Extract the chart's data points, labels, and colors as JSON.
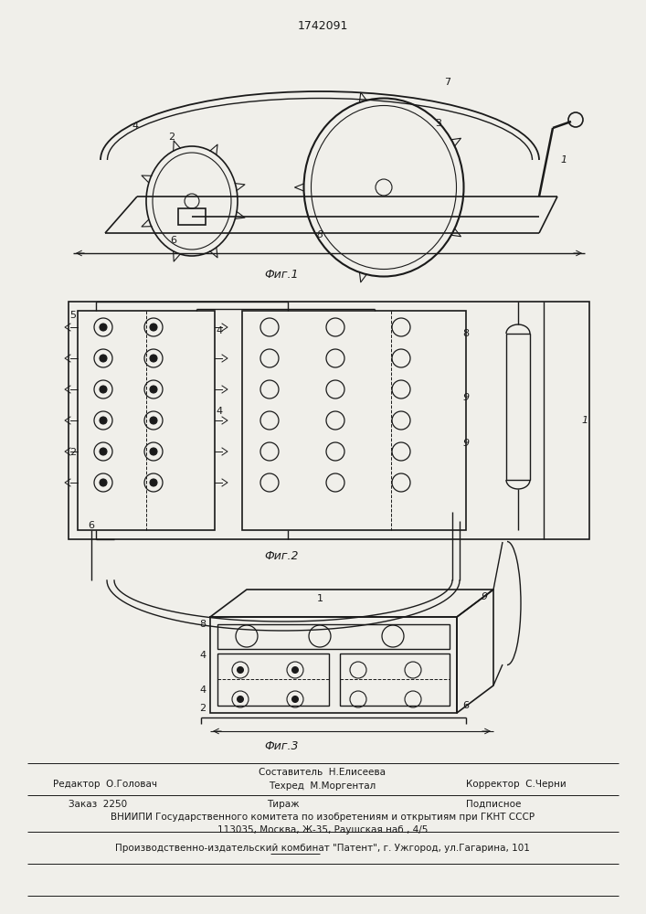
{
  "patent_number": "1742091",
  "fig1_label": "Фиг.1",
  "fig2_label": "Фиг.2",
  "fig3_label": "Фиг.3",
  "bg_color": "#f0efea",
  "line_color": "#1a1a1a",
  "editor_line": "Редактор  О.Головач",
  "compiler_line": "Составитель  Н.Елисеева",
  "techred_line": "Техред  М.Моргентал",
  "corrector_line": "Корректор  С.Черни",
  "order_line": "Заказ  2250",
  "tirazh_line": "Тираж",
  "podpisnoe_line": "Подписное",
  "vniip_line": "ВНИИПИ Государственного комитета по изобретениям и открытиям при ГКНТ СССР",
  "address_line": "113035, Москва, Ж-35, Раушская наб., 4/5",
  "production_line": "Производственно-издательский комбинат \"Патент\", г. Ужгород, ул.Гагарина, 101"
}
